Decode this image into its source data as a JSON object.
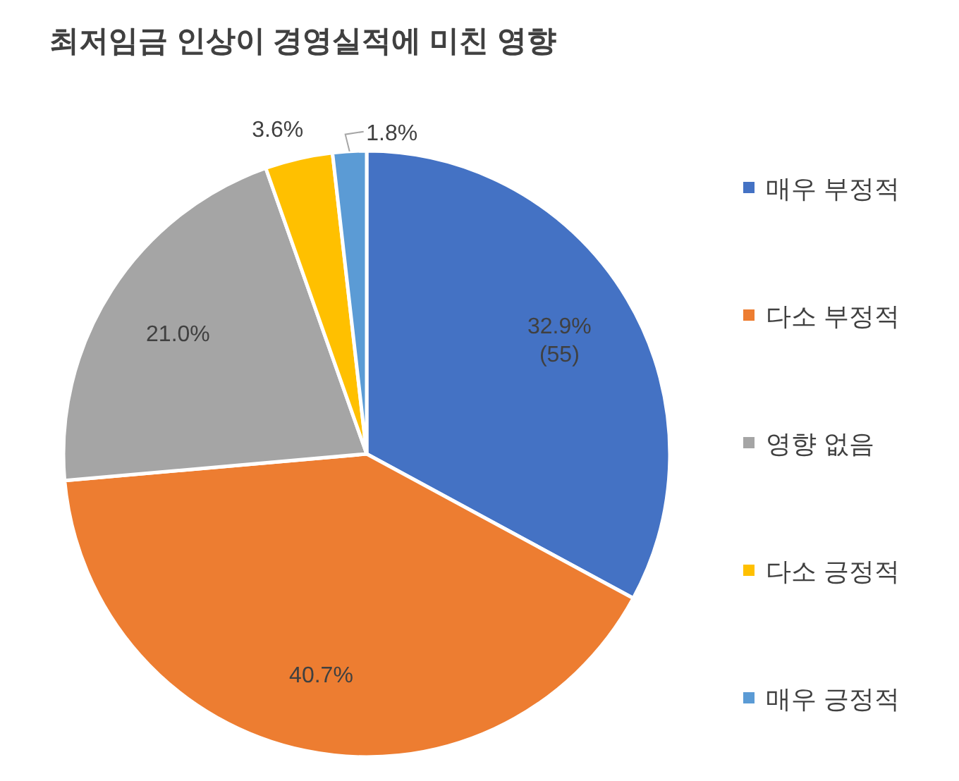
{
  "chart_data": {
    "type": "pie",
    "title": "최저임금 인상이 경영실적에 미친 영향",
    "categories": [
      "매우 부정적",
      "다소 부정적",
      "영향 없음",
      "다소 긍정적",
      "매우 긍정적"
    ],
    "values": [
      32.9,
      40.7,
      21.0,
      3.6,
      1.8
    ],
    "colors": [
      "#4472c4",
      "#ed7d31",
      "#a5a5a5",
      "#ffc000",
      "#5b9bd5"
    ],
    "value_labels": [
      "32.9%\n(55)",
      "40.7%",
      "21.0%",
      "3.6%",
      "1.8%"
    ],
    "legend": "right"
  }
}
